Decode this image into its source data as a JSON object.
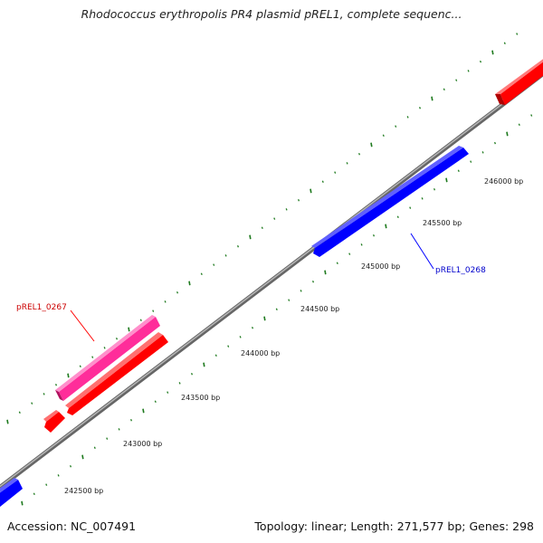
{
  "title": "Rhodococcus erythropolis PR4 plasmid pREL1, complete sequenc...",
  "footer": {
    "accession": "Accession: NC_007491",
    "summary": "Topology: linear; Length: 271,577 bp; Genes: 298"
  },
  "colors": {
    "backbone": "#7a7a7a",
    "tick": "#1e7a1e",
    "gene_red": "#ff0000",
    "gene_magenta": "#ff2d9a",
    "gene_blue": "#0000ff"
  },
  "scale": {
    "tick_labels": [
      "242500 bp",
      "243000 bp",
      "243500 bp",
      "244000 bp",
      "244500 bp",
      "245000 bp",
      "245500 bp",
      "246000 bp"
    ]
  },
  "genes": {
    "label_0267": "pREL1_0267",
    "label_0268": "pREL1_0268"
  }
}
